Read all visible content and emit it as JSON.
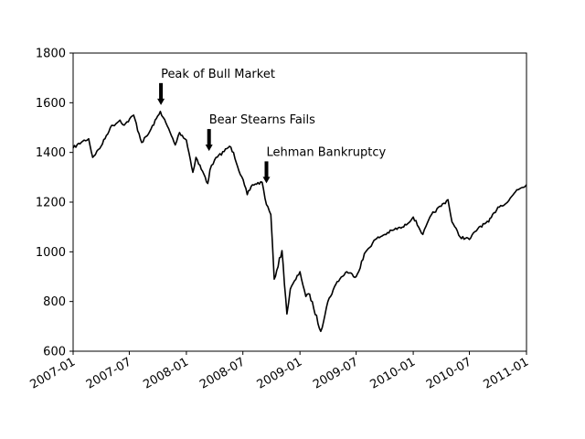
{
  "chart_data": {
    "type": "line",
    "title": "",
    "xlabel": "",
    "ylabel": "",
    "xlim": [
      "2007-01-01",
      "2011-01-01"
    ],
    "ylim": [
      600,
      1800
    ],
    "grid": false,
    "x_ticks": [
      "2007-01",
      "2007-07",
      "2008-01",
      "2008-07",
      "2009-01",
      "2009-07",
      "2010-01",
      "2010-07",
      "2011-01"
    ],
    "y_ticks": [
      600,
      800,
      1000,
      1200,
      1400,
      1600,
      1800
    ],
    "line_color": "#000000",
    "series": [
      {
        "name": "",
        "x": [
          "2007-01-01",
          "2007-02-01",
          "2007-02-20",
          "2007-03-05",
          "2007-04-01",
          "2007-05-01",
          "2007-06-01",
          "2007-06-15",
          "2007-07-15",
          "2007-08-10",
          "2007-09-01",
          "2007-10-09",
          "2007-11-01",
          "2007-11-26",
          "2007-12-10",
          "2008-01-01",
          "2008-01-22",
          "2008-02-01",
          "2008-03-10",
          "2008-03-17",
          "2008-04-01",
          "2008-05-19",
          "2008-06-01",
          "2008-07-15",
          "2008-08-01",
          "2008-09-01",
          "2008-09-15",
          "2008-09-29",
          "2008-10-10",
          "2008-11-04",
          "2008-11-20",
          "2008-12-01",
          "2009-01-01",
          "2009-01-20",
          "2009-02-01",
          "2009-03-09",
          "2009-04-01",
          "2009-05-01",
          "2009-06-01",
          "2009-07-01",
          "2009-08-01",
          "2009-09-01",
          "2009-10-01",
          "2009-11-01",
          "2009-12-01",
          "2010-01-01",
          "2010-02-01",
          "2010-03-01",
          "2010-04-23",
          "2010-05-06",
          "2010-06-01",
          "2010-07-01",
          "2010-08-01",
          "2010-09-01",
          "2010-10-01",
          "2010-11-01",
          "2010-12-01",
          "2011-01-01"
        ],
        "values": [
          1418,
          1445,
          1455,
          1380,
          1425,
          1500,
          1530,
          1510,
          1550,
          1440,
          1475,
          1565,
          1505,
          1430,
          1480,
          1450,
          1320,
          1380,
          1275,
          1330,
          1370,
          1425,
          1400,
          1230,
          1270,
          1280,
          1190,
          1150,
          890,
          1005,
          750,
          850,
          920,
          820,
          830,
          680,
          800,
          880,
          920,
          900,
          1000,
          1050,
          1070,
          1090,
          1100,
          1140,
          1070,
          1150,
          1210,
          1120,
          1060,
          1050,
          1100,
          1120,
          1180,
          1200,
          1250,
          1270
        ]
      }
    ],
    "annotations": [
      {
        "text": "Peak of Bull Market",
        "x": "2007-10-11",
        "y": 1565
      },
      {
        "text": "Bear Stearns Fails",
        "x": "2008-03-14",
        "y": 1380
      },
      {
        "text": "Lehman Bankruptcy",
        "x": "2008-09-15",
        "y": 1250
      }
    ]
  }
}
